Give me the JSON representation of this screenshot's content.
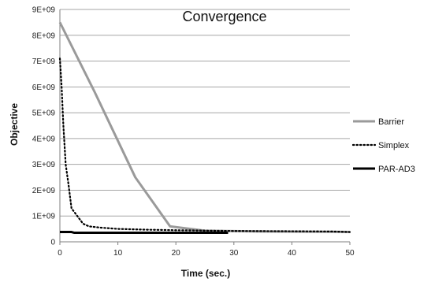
{
  "chart_data": {
    "type": "line",
    "title": "Convergence",
    "xlabel": "Time (sec.)",
    "ylabel": "Objective",
    "xlim": [
      0,
      50
    ],
    "ylim": [
      0,
      9000000000
    ],
    "x_ticks": [
      0,
      10,
      20,
      30,
      40,
      50
    ],
    "x_tick_labels": [
      "0",
      "10",
      "20",
      "30",
      "40",
      "50"
    ],
    "y_ticks": [
      0,
      1000000000,
      2000000000,
      3000000000,
      4000000000,
      5000000000,
      6000000000,
      7000000000,
      8000000000,
      9000000000
    ],
    "y_tick_labels": [
      "0",
      "1E+09",
      "2E+09",
      "3E+09",
      "4E+09",
      "5E+09",
      "6E+09",
      "7E+09",
      "8E+09",
      "9E+09"
    ],
    "grid": "horizontal",
    "legend_position": "right",
    "series": [
      {
        "name": "Barrier",
        "color": "#9a9a9a",
        "style": "solid",
        "x": [
          0,
          6,
          13,
          19,
          25,
          35,
          47,
          50
        ],
        "y": [
          8500000000,
          5800000000,
          2500000000,
          600000000,
          430000000,
          400000000,
          390000000,
          380000000
        ]
      },
      {
        "name": "Simplex",
        "color": "#000000",
        "style": "dotted",
        "x": [
          0,
          0.3,
          0.6,
          1,
          1.5,
          2,
          3,
          4,
          5,
          7,
          10,
          15,
          20,
          30,
          40,
          47,
          50
        ],
        "y": [
          7100000000,
          6000000000,
          4500000000,
          3000000000,
          2200000000,
          1300000000,
          1000000000,
          700000000,
          600000000,
          550000000,
          500000000,
          470000000,
          450000000,
          420000000,
          410000000,
          400000000,
          380000000
        ]
      },
      {
        "name": "PAR-AD3",
        "color": "#000000",
        "style": "solid-thick",
        "x": [
          0,
          2,
          2.5,
          29
        ],
        "y": [
          380000000,
          380000000,
          350000000,
          350000000
        ]
      }
    ]
  }
}
